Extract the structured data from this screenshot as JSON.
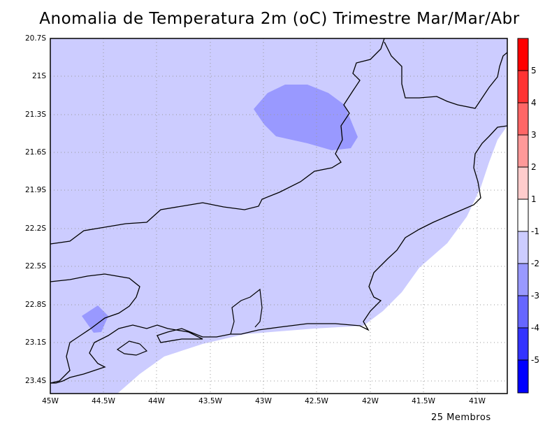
{
  "title": "Anomalia de Temperatura 2m (oC) Trimestre Mar/Mar/Abr",
  "footer": "25 Membros",
  "y_axis": {
    "labels": [
      "20.7S",
      "21S",
      "21.3S",
      "21.6S",
      "21.9S",
      "22.2S",
      "22.5S",
      "22.8S",
      "23.1S",
      "23.4S"
    ],
    "range": [
      -23.5,
      -20.7
    ]
  },
  "x_axis": {
    "labels": [
      "45W",
      "44.5W",
      "44W",
      "43.5W",
      "43W",
      "42.5W",
      "42W",
      "41.5W",
      "41W"
    ],
    "range": [
      -45,
      -40.72
    ]
  },
  "colorbar": {
    "labels": [
      "5",
      "4",
      "3",
      "2",
      "1",
      "-1",
      "-2",
      "-3",
      "-4",
      "-5"
    ],
    "colors": [
      "#ff0000",
      "#ff3333",
      "#ff6666",
      "#ff9999",
      "#ffcccc",
      "#ffffff",
      "#ccccff",
      "#9999ff",
      "#6666ff",
      "#3333ff",
      "#0000ff"
    ]
  },
  "map_colors": {
    "land_anomaly": "#ccccff",
    "patch_anomaly": "#9999ff",
    "neutral": "#ffffff"
  }
}
